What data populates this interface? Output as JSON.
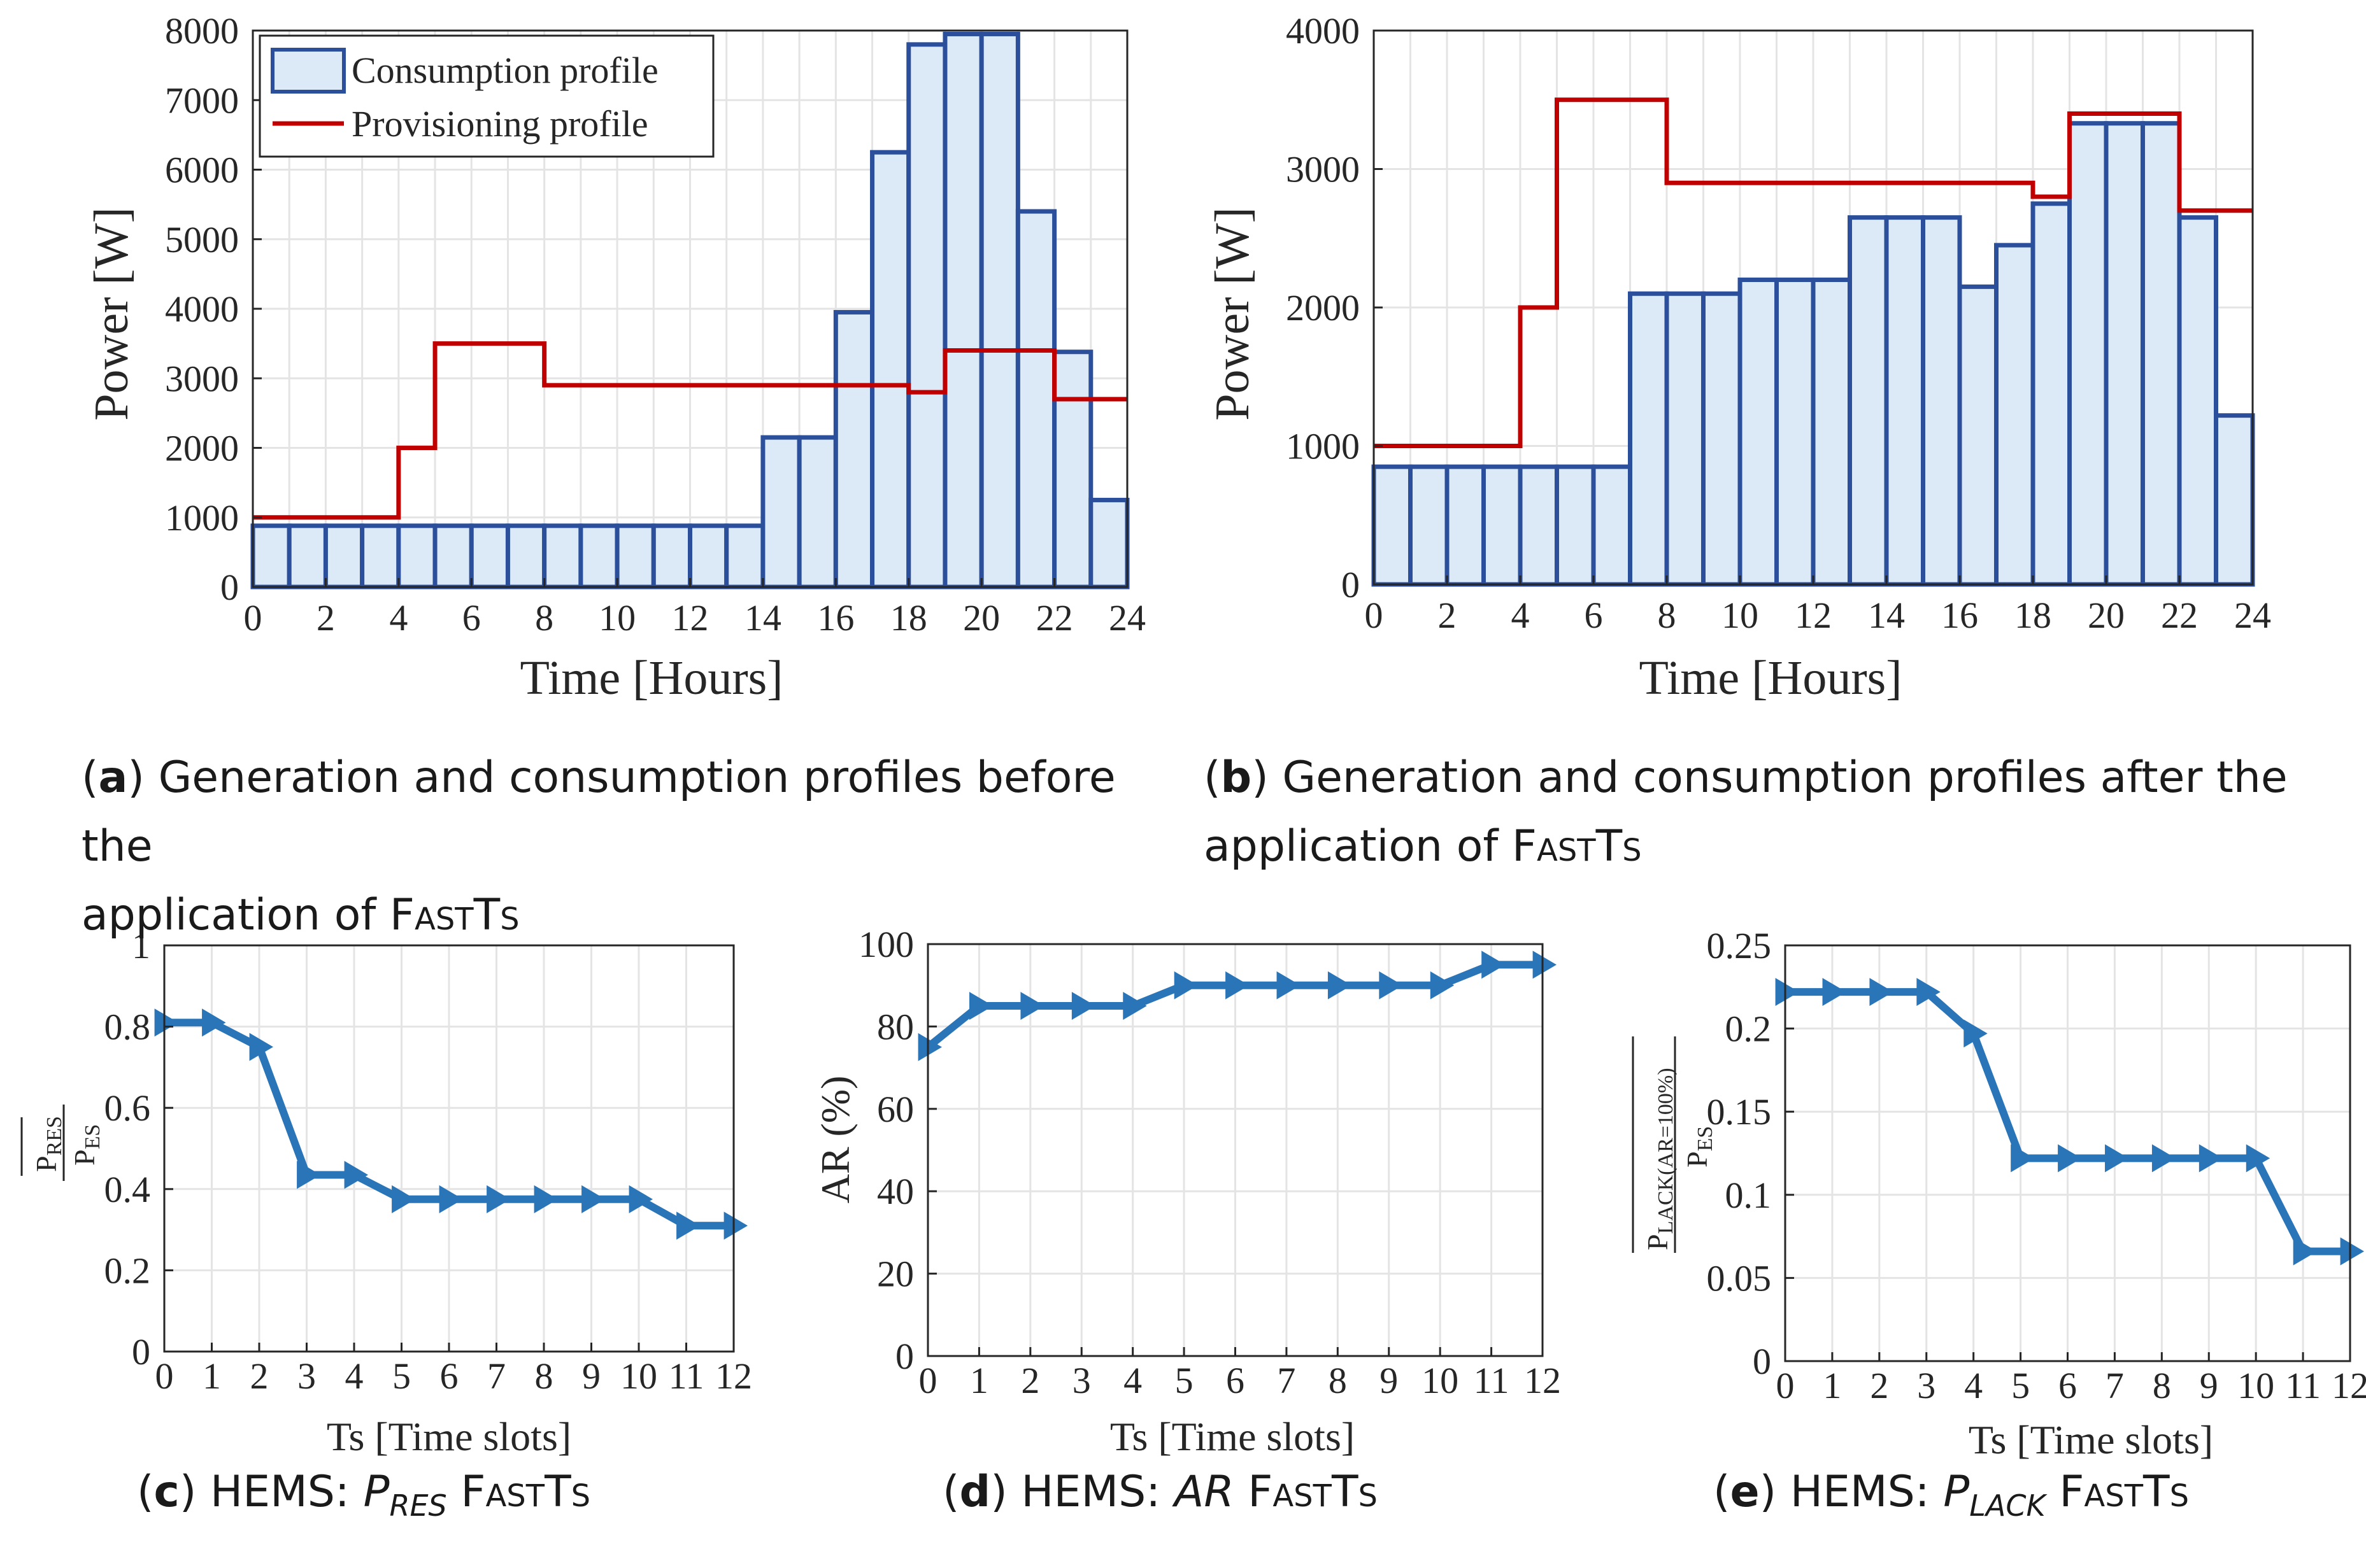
{
  "colors": {
    "bar_fill": "#dce9f7",
    "bar_edge": "#2b4f9a",
    "provision_line": "#c00000",
    "line_series": "#2a74b8",
    "grid": "#e4e4e4",
    "axis": "#262626"
  },
  "chart_data": [
    {
      "id": "a",
      "type": "bar",
      "x": [
        0,
        1,
        2,
        3,
        4,
        5,
        6,
        7,
        8,
        9,
        10,
        11,
        12,
        13,
        14,
        15,
        16,
        17,
        18,
        19,
        20,
        21,
        22,
        23
      ],
      "values": [
        880,
        880,
        880,
        880,
        880,
        880,
        880,
        880,
        880,
        880,
        880,
        880,
        880,
        880,
        2150,
        2150,
        3950,
        6250,
        7800,
        7950,
        7950,
        5400,
        3380,
        1250
      ],
      "provisioning_steps": [
        [
          0,
          1000
        ],
        [
          4,
          2000
        ],
        [
          5,
          3500
        ],
        [
          8,
          2900
        ],
        [
          18,
          2800
        ],
        [
          19,
          3400
        ],
        [
          22,
          2700
        ],
        [
          24,
          2700
        ]
      ],
      "xlim": [
        0,
        24
      ],
      "ylim": [
        0,
        8000
      ],
      "xticks": [
        "0",
        "2",
        "4",
        "6",
        "8",
        "10",
        "12",
        "14",
        "16",
        "18",
        "20",
        "22",
        "24"
      ],
      "yticks": [
        "0",
        "1000",
        "2000",
        "3000",
        "4000",
        "5000",
        "6000",
        "7000",
        "8000"
      ],
      "xlabel": "Time [Hours]",
      "ylabel": "Power [W]",
      "legend": [
        "Consumption profile",
        "Provisioning profile"
      ],
      "legend_position": "top-left"
    },
    {
      "id": "b",
      "type": "bar",
      "x": [
        0,
        1,
        2,
        3,
        4,
        5,
        6,
        7,
        8,
        9,
        10,
        11,
        12,
        13,
        14,
        15,
        16,
        17,
        18,
        19,
        20,
        21,
        22,
        23
      ],
      "values": [
        850,
        850,
        850,
        850,
        850,
        850,
        850,
        2100,
        2100,
        2100,
        2200,
        2200,
        2200,
        2650,
        2650,
        2650,
        2150,
        2450,
        2750,
        3330,
        3330,
        3330,
        2650,
        1220
      ],
      "provisioning_steps": [
        [
          0,
          1000
        ],
        [
          4,
          2000
        ],
        [
          5,
          3500
        ],
        [
          8,
          2900
        ],
        [
          18,
          2800
        ],
        [
          19,
          3400
        ],
        [
          22,
          2700
        ],
        [
          24,
          2700
        ]
      ],
      "xlim": [
        0,
        24
      ],
      "ylim": [
        0,
        4000
      ],
      "xticks": [
        "0",
        "2",
        "4",
        "6",
        "8",
        "10",
        "12",
        "14",
        "16",
        "18",
        "20",
        "22",
        "24"
      ],
      "yticks": [
        "0",
        "1000",
        "2000",
        "3000",
        "4000"
      ],
      "xlabel": "Time [Hours]",
      "ylabel": "Power [W]"
    },
    {
      "id": "c",
      "type": "line",
      "x": [
        0,
        1,
        2,
        3,
        4,
        5,
        6,
        7,
        8,
        9,
        10,
        11,
        12
      ],
      "values": [
        0.81,
        0.81,
        0.75,
        0.435,
        0.435,
        0.375,
        0.375,
        0.375,
        0.375,
        0.375,
        0.375,
        0.31,
        0.31
      ],
      "xlim": [
        0,
        12
      ],
      "ylim": [
        0,
        1
      ],
      "xticks": [
        "0",
        "1",
        "2",
        "3",
        "4",
        "5",
        "6",
        "7",
        "8",
        "9",
        "10",
        "11",
        "12"
      ],
      "yticks": [
        "0",
        "0.2",
        "0.4",
        "0.6",
        "0.8",
        "1"
      ],
      "xlabel": "Ts [Time slots]",
      "ylabel_num": "P",
      "ylabel_num_sub": "RES",
      "ylabel_den": "P",
      "ylabel_den_sub": "ES"
    },
    {
      "id": "d",
      "type": "line",
      "x": [
        0,
        1,
        2,
        3,
        4,
        5,
        6,
        7,
        8,
        9,
        10,
        11,
        12
      ],
      "values": [
        75,
        85,
        85,
        85,
        85,
        90,
        90,
        90,
        90,
        90,
        90,
        95,
        95
      ],
      "xlim": [
        0,
        12
      ],
      "ylim": [
        0,
        100
      ],
      "xticks": [
        "0",
        "1",
        "2",
        "3",
        "4",
        "5",
        "6",
        "7",
        "8",
        "9",
        "10",
        "11",
        "12"
      ],
      "yticks": [
        "0",
        "20",
        "40",
        "60",
        "80",
        "100"
      ],
      "xlabel": "Ts [Time slots]",
      "ylabel": "AR (%)"
    },
    {
      "id": "e",
      "type": "line",
      "x": [
        0,
        1,
        2,
        3,
        4,
        5,
        6,
        7,
        8,
        9,
        10,
        11,
        12
      ],
      "values": [
        0.222,
        0.222,
        0.222,
        0.222,
        0.197,
        0.122,
        0.122,
        0.122,
        0.122,
        0.122,
        0.122,
        0.066,
        0.066
      ],
      "xlim": [
        0,
        12
      ],
      "ylim": [
        0,
        0.25
      ],
      "xticks": [
        "0",
        "1",
        "2",
        "3",
        "4",
        "5",
        "6",
        "7",
        "8",
        "9",
        "10",
        "11",
        "12"
      ],
      "yticks": [
        "0",
        "0.05",
        "0.1",
        "0.15",
        "0.2",
        "0.25"
      ],
      "xlabel": "Ts [Time slots]",
      "ylabel_num": "P",
      "ylabel_num_sub": "LACK(AR=100%)",
      "ylabel_den": "P",
      "ylabel_den_sub": "ES"
    }
  ],
  "captions": {
    "a": {
      "tag": "a",
      "text": "Generation and consumption profiles before the",
      "text2": "application of",
      "name": "FastTs"
    },
    "b": {
      "tag": "b",
      "text": "Generation and consumption profiles after the",
      "text2": "application of",
      "name": "FastTs"
    },
    "c": {
      "tag": "c",
      "text": "HEMS:",
      "var": "P",
      "var_sub": "RES",
      "name": "FastTs"
    },
    "d": {
      "tag": "d",
      "text": "HEMS:",
      "var": "AR",
      "name": "FastTs"
    },
    "e": {
      "tag": "e",
      "text": "HEMS:",
      "var": "P",
      "var_sub": "LACK",
      "name": "FastTs"
    }
  }
}
